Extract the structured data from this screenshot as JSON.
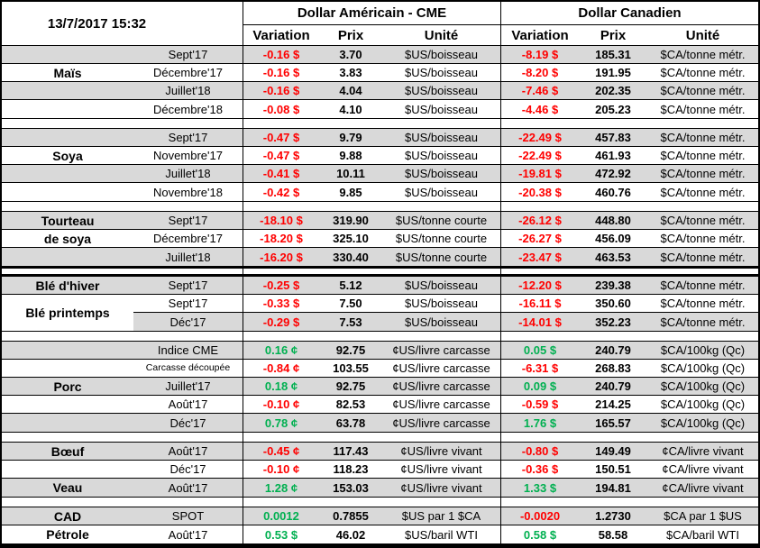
{
  "header": {
    "date": "13/7/2017 15:32",
    "us_group": "Dollar Américain - CME",
    "ca_group": "Dollar Canadien",
    "cols": {
      "variation": "Variation",
      "prix": "Prix",
      "unite": "Unité"
    }
  },
  "colors": {
    "stripe": "#D9D9D9",
    "neg": "#FF0000",
    "pos": "#00B050",
    "border": "#000000"
  },
  "sections": [
    {
      "id": "mais",
      "divider": "none",
      "shades": [
        "g",
        "w",
        "g",
        "w"
      ],
      "rows": [
        {
          "cat": "",
          "month": "Sept'17",
          "us_var": "-0.16 $",
          "us_trend": "neg",
          "us_prix": "3.70",
          "us_unite": "$US/boisseau",
          "ca_var": "-8.19 $",
          "ca_trend": "neg",
          "ca_prix": "185.31",
          "ca_unite": "$CA/tonne métr."
        },
        {
          "cat": "Maïs",
          "month": "Décembre'17",
          "us_var": "-0.16 $",
          "us_trend": "neg",
          "us_prix": "3.83",
          "us_unite": "$US/boisseau",
          "ca_var": "-8.20 $",
          "ca_trend": "neg",
          "ca_prix": "191.95",
          "ca_unite": "$CA/tonne métr."
        },
        {
          "cat": "",
          "month": "Juillet'18",
          "us_var": "-0.16 $",
          "us_trend": "neg",
          "us_prix": "4.04",
          "us_unite": "$US/boisseau",
          "ca_var": "-7.46 $",
          "ca_trend": "neg",
          "ca_prix": "202.35",
          "ca_unite": "$CA/tonne métr."
        },
        {
          "cat": "",
          "month": "Décembre'18",
          "us_var": "-0.08 $",
          "us_trend": "neg",
          "us_prix": "4.10",
          "us_unite": "$US/boisseau",
          "ca_var": "-4.46 $",
          "ca_trend": "neg",
          "ca_prix": "205.23",
          "ca_unite": "$CA/tonne métr."
        }
      ]
    },
    {
      "id": "soya",
      "divider": "thin",
      "shades": [
        "g",
        "w",
        "g",
        "w"
      ],
      "rows": [
        {
          "cat": "",
          "month": "Sept'17",
          "us_var": "-0.47 $",
          "us_trend": "neg",
          "us_prix": "9.79",
          "us_unite": "$US/boisseau",
          "ca_var": "-22.49 $",
          "ca_trend": "neg",
          "ca_prix": "457.83",
          "ca_unite": "$CA/tonne métr."
        },
        {
          "cat": "Soya",
          "month": "Novembre'17",
          "us_var": "-0.47 $",
          "us_trend": "neg",
          "us_prix": "9.88",
          "us_unite": "$US/boisseau",
          "ca_var": "-22.49 $",
          "ca_trend": "neg",
          "ca_prix": "461.93",
          "ca_unite": "$CA/tonne métr."
        },
        {
          "cat": "",
          "month": "Juillet'18",
          "us_var": "-0.41 $",
          "us_trend": "neg",
          "us_prix": "10.11",
          "us_unite": "$US/boisseau",
          "ca_var": "-19.81 $",
          "ca_trend": "neg",
          "ca_prix": "472.92",
          "ca_unite": "$CA/tonne métr."
        },
        {
          "cat": "",
          "month": "Novembre'18",
          "us_var": "-0.42 $",
          "us_trend": "neg",
          "us_prix": "9.85",
          "us_unite": "$US/boisseau",
          "ca_var": "-20.38 $",
          "ca_trend": "neg",
          "ca_prix": "460.76",
          "ca_unite": "$CA/tonne métr."
        }
      ]
    },
    {
      "id": "tourteau-de-soya",
      "divider": "thin",
      "shades": [
        "g",
        "w",
        "g"
      ],
      "rows": [
        {
          "cat": "Tourteau",
          "month": "Sept'17",
          "us_var": "-18.10 $",
          "us_trend": "neg",
          "us_prix": "319.90",
          "us_unite": "$US/tonne courte",
          "ca_var": "-26.12 $",
          "ca_trend": "neg",
          "ca_prix": "448.80",
          "ca_unite": "$CA/tonne métr."
        },
        {
          "cat": "de soya",
          "month": "Décembre'17",
          "us_var": "-18.20 $",
          "us_trend": "neg",
          "us_prix": "325.10",
          "us_unite": "$US/tonne courte",
          "ca_var": "-26.27 $",
          "ca_trend": "neg",
          "ca_prix": "456.09",
          "ca_unite": "$CA/tonne métr."
        },
        {
          "cat": "",
          "month": "Juillet'18",
          "us_var": "-16.20 $",
          "us_trend": "neg",
          "us_prix": "330.40",
          "us_unite": "$US/tonne courte",
          "ca_var": "-23.47 $",
          "ca_trend": "neg",
          "ca_prix": "463.53",
          "ca_unite": "$CA/tonne métr."
        }
      ]
    },
    {
      "id": "ble",
      "divider": "thick",
      "shades": [
        "g",
        "w",
        "g"
      ],
      "rows": [
        {
          "cat": "Blé d'hiver",
          "month": "Sept'17",
          "us_var": "-0.25 $",
          "us_trend": "neg",
          "us_prix": "5.12",
          "us_unite": "$US/boisseau",
          "ca_var": "-12.20 $",
          "ca_trend": "neg",
          "ca_prix": "239.38",
          "ca_unite": "$CA/tonne métr."
        },
        {
          "cat": "Blé printemps",
          "cat_span": 2,
          "cat_white": true,
          "month": "Sept'17",
          "us_var": "-0.33 $",
          "us_trend": "neg",
          "us_prix": "7.50",
          "us_unite": "$US/boisseau",
          "ca_var": "-16.11 $",
          "ca_trend": "neg",
          "ca_prix": "350.60",
          "ca_unite": "$CA/tonne métr."
        },
        {
          "cat_skip": true,
          "month": "Déc'17",
          "us_var": "-0.29 $",
          "us_trend": "neg",
          "us_prix": "7.53",
          "us_unite": "$US/boisseau",
          "ca_var": "-14.01 $",
          "ca_trend": "neg",
          "ca_prix": "352.23",
          "ca_unite": "$CA/tonne métr."
        }
      ]
    },
    {
      "id": "porc",
      "divider": "thin",
      "shades": [
        "g",
        "w",
        "g",
        "w",
        "g"
      ],
      "rows": [
        {
          "cat": "",
          "month": "Indice CME",
          "us_var": "0.16 ¢",
          "us_trend": "pos",
          "us_prix": "92.75",
          "us_unite": "¢US/livre carcasse",
          "ca_var": "0.05 $",
          "ca_trend": "pos",
          "ca_prix": "240.79",
          "ca_unite": "$CA/100kg (Qc)"
        },
        {
          "cat": "",
          "month": "Carcasse découpée",
          "month_small": true,
          "us_var": "-0.84 ¢",
          "us_trend": "neg",
          "us_prix": "103.55",
          "us_unite": "¢US/livre carcasse",
          "ca_var": "-6.31 $",
          "ca_trend": "neg",
          "ca_prix": "268.83",
          "ca_unite": "$CA/100kg (Qc)"
        },
        {
          "cat": "Porc",
          "month": "Juillet'17",
          "us_var": "0.18 ¢",
          "us_trend": "pos",
          "us_prix": "92.75",
          "us_unite": "¢US/livre carcasse",
          "ca_var": "0.09 $",
          "ca_trend": "pos",
          "ca_prix": "240.79",
          "ca_unite": "$CA/100kg (Qc)"
        },
        {
          "cat": "",
          "month": "Août'17",
          "us_var": "-0.10 ¢",
          "us_trend": "neg",
          "us_prix": "82.53",
          "us_unite": "¢US/livre carcasse",
          "ca_var": "-0.59 $",
          "ca_trend": "neg",
          "ca_prix": "214.25",
          "ca_unite": "$CA/100kg (Qc)"
        },
        {
          "cat": "",
          "month": "Déc'17",
          "us_var": "0.78 ¢",
          "us_trend": "pos",
          "us_prix": "63.78",
          "us_unite": "¢US/livre carcasse",
          "ca_var": "1.76 $",
          "ca_trend": "pos",
          "ca_prix": "165.57",
          "ca_unite": "$CA/100kg (Qc)"
        }
      ]
    },
    {
      "id": "boeuf-veau",
      "divider": "thin",
      "shades": [
        "g",
        "w",
        "g"
      ],
      "rows": [
        {
          "cat": "Bœuf",
          "month": "Août'17",
          "us_var": "-0.45 ¢",
          "us_trend": "neg",
          "us_prix": "117.43",
          "us_unite": "¢US/livre vivant",
          "ca_var": "-0.80 $",
          "ca_trend": "neg",
          "ca_prix": "149.49",
          "ca_unite": "¢CA/livre vivant"
        },
        {
          "cat": "",
          "month": "Déc'17",
          "us_var": "-0.10 ¢",
          "us_trend": "neg",
          "us_prix": "118.23",
          "us_unite": "¢US/livre vivant",
          "ca_var": "-0.36 $",
          "ca_trend": "neg",
          "ca_prix": "150.51",
          "ca_unite": "¢CA/livre vivant"
        },
        {
          "cat": "Veau",
          "month": "Août'17",
          "us_var": "1.28 ¢",
          "us_trend": "pos",
          "us_prix": "153.03",
          "us_unite": "¢US/livre vivant",
          "ca_var": "1.33 $",
          "ca_trend": "pos",
          "ca_prix": "194.81",
          "ca_unite": "¢CA/livre vivant"
        }
      ]
    },
    {
      "id": "cad-petrole",
      "divider": "thin",
      "shades": [
        "g",
        "w"
      ],
      "rows": [
        {
          "cat": "CAD",
          "month": "SPOT",
          "us_var": "0.0012",
          "us_trend": "pos",
          "us_prix": "0.7855",
          "us_unite": "$US par 1 $CA",
          "ca_var": "-0.0020",
          "ca_trend": "neg",
          "ca_prix": "1.2730",
          "ca_unite": "$CA par 1 $US"
        },
        {
          "cat": "Pétrole",
          "month": "Août'17",
          "us_var": "0.53 $",
          "us_trend": "pos",
          "us_prix": "46.02",
          "us_unite": "$US/baril WTI",
          "ca_var": "0.58 $",
          "ca_trend": "pos",
          "ca_prix": "58.58",
          "ca_unite": "$CA/baril WTI"
        }
      ]
    }
  ]
}
